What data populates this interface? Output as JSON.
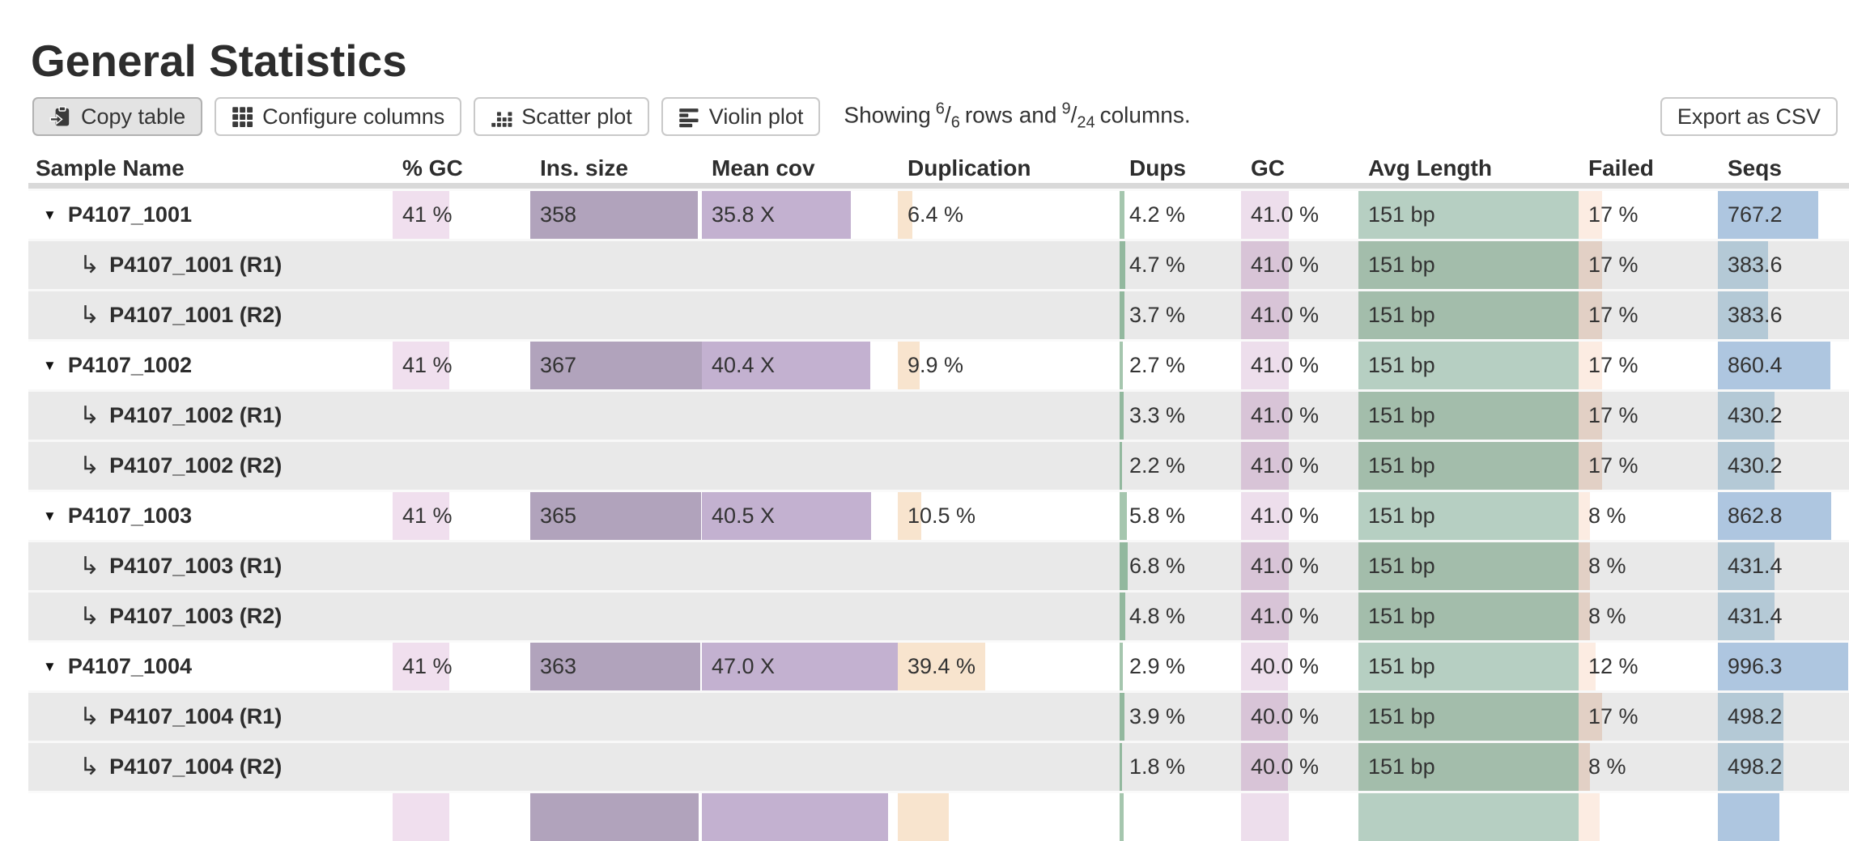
{
  "page": {
    "title": "General Statistics"
  },
  "toolbar": {
    "buttons": [
      {
        "label": "Copy table",
        "icon": "clipboard-icon",
        "active": true
      },
      {
        "label": "Configure columns",
        "icon": "grid-icon",
        "active": false
      },
      {
        "label": "Scatter plot",
        "icon": "scatter-icon",
        "active": false
      },
      {
        "label": "Violin plot",
        "icon": "violin-icon",
        "active": false
      }
    ],
    "showing": {
      "prefix": "Showing",
      "rows_shown": "6",
      "rows_total": "6",
      "mid": "rows and",
      "cols_shown": "9",
      "cols_total": "24",
      "suffix": "columns.",
      "frac_sep": "/"
    },
    "export_label": "Export as CSV"
  },
  "colors": {
    "header_divider": "#d9d9d9",
    "subrow_bg": "#e9e9e9",
    "bar_colors": {
      "pct_gc": "#f0dfee",
      "ins_size": "#b1a3bc",
      "mean_cov": "#c3b1d0",
      "duplication": "#f8e4ce",
      "dups": "#a5c6ae",
      "gc": "#eddeec",
      "avg_length": "#b6cfc2",
      "failed": "#fcece2",
      "seqs": "#aec6e0"
    },
    "bar_colors_sub": {
      "dups": "#92b89e",
      "gc": "#d8c4d7",
      "avg_length": "#a3bdab",
      "failed": "#e2d0c5",
      "seqs": "#b4c9d6"
    }
  },
  "table": {
    "headers": [
      "Sample Name",
      "% GC",
      "Ins. size",
      "Mean cov",
      "Duplication",
      "Dups",
      "GC",
      "Avg Length",
      "Failed",
      "Seqs"
    ],
    "col_keys": [
      "pct_gc",
      "ins_size",
      "mean_cov",
      "duplication",
      "dups",
      "gc",
      "avg_length",
      "failed",
      "seqs"
    ],
    "toggle_glyph": "▼",
    "subrow_glyph": "↳",
    "rows": [
      {
        "type": "main",
        "name": "P4107_1001",
        "cells": [
          {
            "text": "41 %",
            "frac": 0.41
          },
          {
            "text": "358",
            "frac": 0.975
          },
          {
            "text": "35.8 X",
            "frac": 0.762
          },
          {
            "text": "6.4 %",
            "frac": 0.064
          },
          {
            "text": "4.2 %",
            "frac": 0.042
          },
          {
            "text": "41.0 %",
            "frac": 0.41
          },
          {
            "text": "151 bp",
            "frac": 1.0
          },
          {
            "text": "17 %",
            "frac": 0.17
          },
          {
            "text": "767.2",
            "frac": 0.767
          }
        ]
      },
      {
        "type": "sub",
        "name": "P4107_1001 (R1)",
        "cells": [
          null,
          null,
          null,
          null,
          {
            "text": "4.7 %",
            "frac": 0.047
          },
          {
            "text": "41.0 %",
            "frac": 0.41
          },
          {
            "text": "151 bp",
            "frac": 1.0
          },
          {
            "text": "17 %",
            "frac": 0.17
          },
          {
            "text": "383.6",
            "frac": 0.384
          }
        ]
      },
      {
        "type": "sub",
        "name": "P4107_1001 (R2)",
        "cells": [
          null,
          null,
          null,
          null,
          {
            "text": "3.7 %",
            "frac": 0.037
          },
          {
            "text": "41.0 %",
            "frac": 0.41
          },
          {
            "text": "151 bp",
            "frac": 1.0
          },
          {
            "text": "17 %",
            "frac": 0.17
          },
          {
            "text": "383.6",
            "frac": 0.384
          }
        ]
      },
      {
        "type": "main",
        "name": "P4107_1002",
        "cells": [
          {
            "text": "41 %",
            "frac": 0.41
          },
          {
            "text": "367",
            "frac": 1.0
          },
          {
            "text": "40.4 X",
            "frac": 0.86
          },
          {
            "text": "9.9 %",
            "frac": 0.099
          },
          {
            "text": "2.7 %",
            "frac": 0.027
          },
          {
            "text": "41.0 %",
            "frac": 0.41
          },
          {
            "text": "151 bp",
            "frac": 1.0
          },
          {
            "text": "17 %",
            "frac": 0.17
          },
          {
            "text": "860.4",
            "frac": 0.86
          }
        ]
      },
      {
        "type": "sub",
        "name": "P4107_1002 (R1)",
        "cells": [
          null,
          null,
          null,
          null,
          {
            "text": "3.3 %",
            "frac": 0.033
          },
          {
            "text": "41.0 %",
            "frac": 0.41
          },
          {
            "text": "151 bp",
            "frac": 1.0
          },
          {
            "text": "17 %",
            "frac": 0.17
          },
          {
            "text": "430.2",
            "frac": 0.43
          }
        ]
      },
      {
        "type": "sub",
        "name": "P4107_1002 (R2)",
        "cells": [
          null,
          null,
          null,
          null,
          {
            "text": "2.2 %",
            "frac": 0.022
          },
          {
            "text": "41.0 %",
            "frac": 0.41
          },
          {
            "text": "151 bp",
            "frac": 1.0
          },
          {
            "text": "17 %",
            "frac": 0.17
          },
          {
            "text": "430.2",
            "frac": 0.43
          }
        ]
      },
      {
        "type": "main",
        "name": "P4107_1003",
        "cells": [
          {
            "text": "41 %",
            "frac": 0.41
          },
          {
            "text": "365",
            "frac": 0.995
          },
          {
            "text": "40.5 X",
            "frac": 0.862
          },
          {
            "text": "10.5 %",
            "frac": 0.105
          },
          {
            "text": "5.8 %",
            "frac": 0.058
          },
          {
            "text": "41.0 %",
            "frac": 0.41
          },
          {
            "text": "151 bp",
            "frac": 1.0
          },
          {
            "text": "8 %",
            "frac": 0.08
          },
          {
            "text": "862.8",
            "frac": 0.863
          }
        ]
      },
      {
        "type": "sub",
        "name": "P4107_1003 (R1)",
        "cells": [
          null,
          null,
          null,
          null,
          {
            "text": "6.8 %",
            "frac": 0.068
          },
          {
            "text": "41.0 %",
            "frac": 0.41
          },
          {
            "text": "151 bp",
            "frac": 1.0
          },
          {
            "text": "8 %",
            "frac": 0.08
          },
          {
            "text": "431.4",
            "frac": 0.431
          }
        ]
      },
      {
        "type": "sub",
        "name": "P4107_1003 (R2)",
        "cells": [
          null,
          null,
          null,
          null,
          {
            "text": "4.8 %",
            "frac": 0.048
          },
          {
            "text": "41.0 %",
            "frac": 0.41
          },
          {
            "text": "151 bp",
            "frac": 1.0
          },
          {
            "text": "8 %",
            "frac": 0.08
          },
          {
            "text": "431.4",
            "frac": 0.431
          }
        ]
      },
      {
        "type": "main",
        "name": "P4107_1004",
        "cells": [
          {
            "text": "41 %",
            "frac": 0.41
          },
          {
            "text": "363",
            "frac": 0.989
          },
          {
            "text": "47.0 X",
            "frac": 1.0
          },
          {
            "text": "39.4 %",
            "frac": 0.394
          },
          {
            "text": "2.9 %",
            "frac": 0.029
          },
          {
            "text": "40.0 %",
            "frac": 0.4
          },
          {
            "text": "151 bp",
            "frac": 1.0
          },
          {
            "text": "12 %",
            "frac": 0.12
          },
          {
            "text": "996.3",
            "frac": 0.996
          }
        ]
      },
      {
        "type": "sub",
        "name": "P4107_1004 (R1)",
        "cells": [
          null,
          null,
          null,
          null,
          {
            "text": "3.9 %",
            "frac": 0.039
          },
          {
            "text": "40.0 %",
            "frac": 0.4
          },
          {
            "text": "151 bp",
            "frac": 1.0
          },
          {
            "text": "17 %",
            "frac": 0.17
          },
          {
            "text": "498.2",
            "frac": 0.498
          }
        ]
      },
      {
        "type": "sub",
        "name": "P4107_1004 (R2)",
        "cells": [
          null,
          null,
          null,
          null,
          {
            "text": "1.8 %",
            "frac": 0.018
          },
          {
            "text": "40.0 %",
            "frac": 0.4
          },
          {
            "text": "151 bp",
            "frac": 1.0
          },
          {
            "text": "8 %",
            "frac": 0.08
          },
          {
            "text": "498.2",
            "frac": 0.498
          }
        ]
      },
      {
        "type": "main",
        "name": "",
        "cells": [
          {
            "text": "",
            "frac": 0.41
          },
          {
            "text": "",
            "frac": 0.98
          },
          {
            "text": "",
            "frac": 0.95
          },
          {
            "text": "",
            "frac": 0.23
          },
          {
            "text": "",
            "frac": 0.03
          },
          {
            "text": "",
            "frac": 0.41
          },
          {
            "text": "",
            "frac": 1.0
          },
          {
            "text": "",
            "frac": 0.15
          },
          {
            "text": "",
            "frac": 0.47
          }
        ]
      }
    ]
  }
}
